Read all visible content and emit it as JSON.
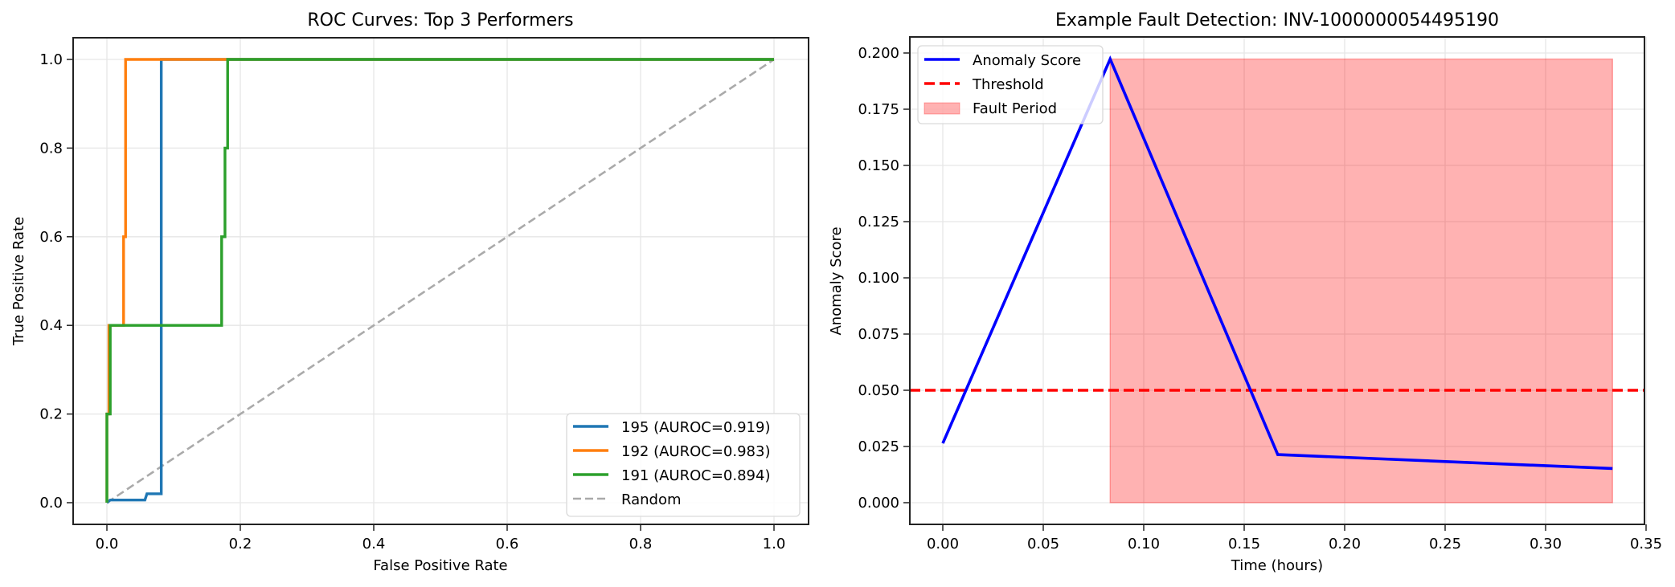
{
  "chart_data": [
    {
      "type": "line",
      "title": "ROC Curves: Top 3 Performers",
      "xlabel": "False Positive Rate",
      "ylabel": "True Positive Rate",
      "xlim": [
        -0.05,
        1.05
      ],
      "ylim": [
        -0.05,
        1.05
      ],
      "xticks": [
        "0.0",
        "0.2",
        "0.4",
        "0.6",
        "0.8",
        "1.0"
      ],
      "yticks": [
        "0.0",
        "0.2",
        "0.4",
        "0.6",
        "0.8",
        "1.0"
      ],
      "grid": true,
      "legend_position": "lower right",
      "series": [
        {
          "name": "195 (AUROC=0.919)",
          "color": "#1f77b4",
          "style": "solid",
          "x": [
            0.0,
            0.005,
            0.057,
            0.06,
            0.0815,
            0.0815,
            1.0
          ],
          "y": [
            0.0,
            0.006,
            0.006,
            0.02,
            0.02,
            1.0,
            1.0
          ]
        },
        {
          "name": "192 (AUROC=0.983)",
          "color": "#ff7f0e",
          "style": "solid",
          "x": [
            0.0,
            0.0,
            0.003,
            0.003,
            0.025,
            0.025,
            0.028,
            0.028,
            1.0
          ],
          "y": [
            0.0,
            0.2,
            0.2,
            0.4,
            0.4,
            0.6,
            0.6,
            1.0,
            1.0
          ]
        },
        {
          "name": "191 (AUROC=0.894)",
          "color": "#2ca02c",
          "style": "solid",
          "x": [
            0.0,
            0.0,
            0.005,
            0.005,
            0.172,
            0.172,
            0.177,
            0.177,
            0.181,
            0.181,
            1.0
          ],
          "y": [
            0.0,
            0.2,
            0.2,
            0.4,
            0.4,
            0.6,
            0.6,
            0.8,
            0.8,
            1.0,
            1.0
          ]
        },
        {
          "name": "Random",
          "color": "#aaaaaa",
          "style": "dashed",
          "x": [
            0.0,
            1.0
          ],
          "y": [
            0.0,
            1.0
          ]
        }
      ]
    },
    {
      "type": "line",
      "title": "Example Fault Detection: INV-1000000054495190",
      "xlabel": "Time (hours)",
      "ylabel": "Anomaly Score",
      "xlim": [
        -0.017,
        0.35
      ],
      "ylim": [
        -0.0098,
        0.2074
      ],
      "xticks": [
        "0.00",
        "0.05",
        "0.10",
        "0.15",
        "0.20",
        "0.25",
        "0.30",
        "0.35"
      ],
      "yticks": [
        "0.000",
        "0.025",
        "0.050",
        "0.075",
        "0.100",
        "0.125",
        "0.150",
        "0.175",
        "0.200"
      ],
      "grid": true,
      "legend_position": "upper left",
      "series": [
        {
          "name": "Anomaly Score",
          "color": "#0000ff",
          "style": "solid",
          "x": [
            0.0,
            0.0833,
            0.1667,
            0.3333
          ],
          "y": [
            0.0264,
            0.1973,
            0.0214,
            0.0152
          ]
        },
        {
          "name": "Threshold",
          "color": "#ff0000",
          "style": "dashed",
          "y_const": 0.05
        },
        {
          "name": "Fault Period",
          "color": "#ff0000",
          "style": "fill",
          "alpha": 0.3,
          "x_range": [
            0.0833,
            0.3333
          ],
          "y_range": [
            0.0,
            0.1973
          ]
        }
      ]
    }
  ]
}
